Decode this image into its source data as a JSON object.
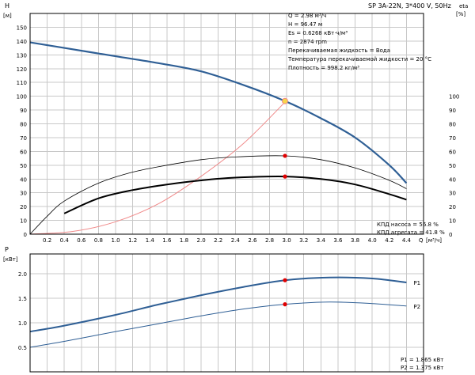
{
  "header": {
    "pump_label": "SP 3A-22N, 3*400 V, 50Hz"
  },
  "info": {
    "lines": [
      "Q = 2.98 м³/ч",
      "H = 96.47 м",
      "Es = 0.6268 кВт·ч/м³",
      "n = 2874 rpm",
      "Перекачиваемая жидкость = Вода",
      "Температура перекачиваемой жидкости = 20 °C",
      "Плотность = 998.2 кг/м³"
    ],
    "efficiency_lines": [
      "КПД насоса = 56.8 %",
      "КПД агрегата = 41.8 %"
    ],
    "power_lines": [
      "P1 = 1.865 кВт",
      "P2 = 1.375 кВт"
    ]
  },
  "colors": {
    "head_curve": "#2f5f95",
    "system_curve": "#f08a8a",
    "pump_eff_curve": "#000000",
    "unit_eff_curve": "#000000",
    "power_curve": "#2f5f95",
    "duty_point": "#e00000",
    "head_duty_point": "#f7d64a"
  },
  "chart_data": [
    {
      "type": "line",
      "title": "",
      "ylabel": "H",
      "yunit": "[м]",
      "y2label": "eta",
      "y2unit": "[%]",
      "xlabel": "Q",
      "xunit": "[м³/ч]",
      "xlim": [
        0,
        4.6
      ],
      "ylim": [
        0,
        160
      ],
      "y2lim": [
        0,
        160
      ],
      "x_ticks": [
        "0.2",
        "0.4",
        "0.6",
        "0.8",
        "1.0",
        "1.2",
        "1.4",
        "1.6",
        "1.8",
        "2.0",
        "2.2",
        "2.4",
        "2.6",
        "2.8",
        "3.0",
        "3.2",
        "3.4",
        "3.6",
        "3.8",
        "4.0",
        "4.2",
        "4.4"
      ],
      "y_ticks": [
        "0",
        "10",
        "20",
        "30",
        "40",
        "50",
        "60",
        "70",
        "80",
        "90",
        "100",
        "110",
        "120",
        "130",
        "140",
        "150"
      ],
      "y2_ticks": [
        "0",
        "10",
        "20",
        "30",
        "40",
        "50",
        "60",
        "70",
        "80",
        "90",
        "100"
      ],
      "grid": true,
      "series": [
        {
          "key": "head",
          "x": [
            0,
            0.4,
            1.0,
            1.5,
            2.0,
            2.5,
            2.98,
            3.4,
            3.8,
            4.2,
            4.4
          ],
          "y": [
            139,
            135,
            129,
            124,
            118,
            108,
            96.5,
            84,
            70,
            50,
            37
          ]
        },
        {
          "key": "system",
          "x": [
            0,
            0.5,
            1.0,
            1.5,
            2.0,
            2.5,
            3.0
          ],
          "y": [
            0,
            2,
            9,
            22,
            42,
            66,
            97
          ]
        },
        {
          "key": "pump_eff",
          "x": [
            0,
            0.2,
            0.4,
            0.8,
            1.2,
            1.6,
            2.0,
            2.4,
            2.98,
            3.4,
            3.8,
            4.2,
            4.4
          ],
          "y": [
            0,
            13,
            24,
            37,
            45,
            50,
            54,
            56,
            56.8,
            54,
            48,
            39,
            33
          ]
        },
        {
          "key": "unit_eff",
          "x": [
            0.4,
            0.8,
            1.2,
            1.6,
            2.0,
            2.4,
            2.98,
            3.4,
            3.8,
            4.2,
            4.4
          ],
          "y": [
            15,
            26,
            32,
            36,
            39,
            41,
            41.8,
            40,
            36,
            29,
            25
          ]
        }
      ],
      "duty_points": [
        {
          "key": "head",
          "x": 2.98,
          "y": 96.5
        },
        {
          "key": "pump_eff",
          "x": 2.98,
          "y": 56.8
        },
        {
          "key": "unit_eff",
          "x": 2.98,
          "y": 41.8
        }
      ]
    },
    {
      "type": "line",
      "title": "",
      "ylabel": "P",
      "yunit": "[кВт]",
      "xlim": [
        0,
        4.6
      ],
      "ylim": [
        0,
        2.4
      ],
      "y_ticks": [
        "0.5",
        "1.0",
        "1.5",
        "2.0"
      ],
      "grid": true,
      "series": [
        {
          "key": "P1",
          "name": "P1",
          "x": [
            0,
            0.4,
            1.0,
            1.5,
            2.0,
            2.5,
            2.98,
            3.5,
            4.0,
            4.4
          ],
          "y": [
            0.82,
            0.94,
            1.16,
            1.37,
            1.56,
            1.73,
            1.865,
            1.92,
            1.9,
            1.82
          ]
        },
        {
          "key": "P2",
          "name": "P2",
          "x": [
            0,
            0.4,
            1.0,
            1.5,
            2.0,
            2.5,
            2.98,
            3.5,
            4.0,
            4.4
          ],
          "y": [
            0.5,
            0.62,
            0.82,
            0.98,
            1.14,
            1.28,
            1.375,
            1.42,
            1.39,
            1.34
          ]
        }
      ],
      "duty_points": [
        {
          "key": "P1",
          "x": 2.98,
          "y": 1.865
        },
        {
          "key": "P2",
          "x": 2.98,
          "y": 1.375
        }
      ]
    }
  ]
}
